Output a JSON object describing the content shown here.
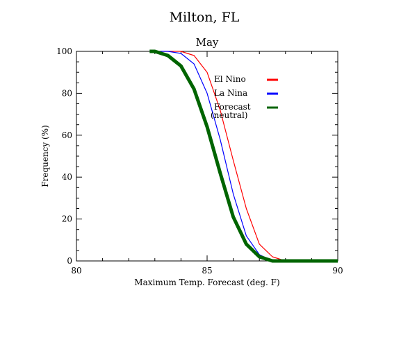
{
  "chart_data": {
    "type": "line",
    "title": "Milton, FL",
    "subtitle": "May",
    "xlabel": "Maximum Temp. Forecast (deg. F)",
    "ylabel": "Frequency (%)",
    "xlim": [
      80,
      90
    ],
    "ylim": [
      0,
      100
    ],
    "xticks": [
      "80",
      "85",
      "90"
    ],
    "yticks": [
      "0",
      "20",
      "40",
      "60",
      "80",
      "100"
    ],
    "legend_placement": "top-right",
    "series": [
      {
        "name": "El Nino",
        "color": "#ff0000",
        "x": [
          82.8,
          83.5,
          84.0,
          84.5,
          85.0,
          85.5,
          86.0,
          86.5,
          87.0,
          87.5,
          88.0,
          88.5,
          89.0,
          89.5,
          90.0
        ],
        "y": [
          100,
          100,
          100,
          98,
          90,
          72,
          48,
          25,
          8,
          2,
          0,
          0,
          0,
          0,
          0
        ]
      },
      {
        "name": "La Nina",
        "color": "#0000ff",
        "x": [
          82.8,
          83.5,
          84.0,
          84.5,
          85.0,
          85.5,
          86.0,
          86.5,
          87.0,
          87.5,
          88.0,
          88.5,
          89.0,
          89.5,
          90.0
        ],
        "y": [
          100,
          100,
          99,
          94,
          80,
          58,
          32,
          12,
          3,
          0,
          0,
          0,
          0,
          0,
          0
        ]
      },
      {
        "name": "Forecast\n(neutral)",
        "color": "#006400",
        "x": [
          82.8,
          83.0,
          83.5,
          84.0,
          84.5,
          85.0,
          85.5,
          86.0,
          86.5,
          87.0,
          87.5,
          88.0,
          88.5,
          89.0,
          89.5,
          90.0
        ],
        "y": [
          100,
          100,
          98,
          93,
          82,
          64,
          42,
          21,
          8,
          2,
          0,
          0,
          0,
          0,
          0,
          0
        ]
      }
    ]
  }
}
